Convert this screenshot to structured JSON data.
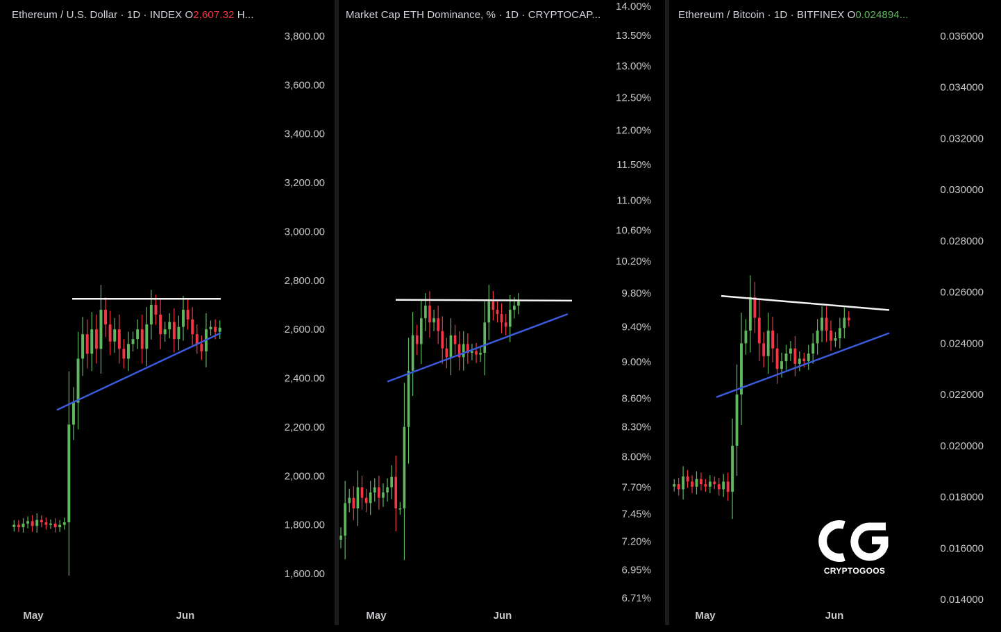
{
  "chart_data": [
    {
      "type": "candlestick",
      "title_prefix": "Ethereum / U.S. Dollar · 1D · INDEX  O",
      "title_value": "2,607.32",
      "title_suffix": "  H...",
      "y_ticks": [
        "3,800.00",
        "3,600.00",
        "3,400.00",
        "3,200.00",
        "3,000.00",
        "2,800.00",
        "2,600.00",
        "2,400.00",
        "2,200.00",
        "2,000.00",
        "1,800.00",
        "1,600.00"
      ],
      "y_tick_values": [
        3800,
        3600,
        3400,
        3200,
        3000,
        2800,
        2600,
        2400,
        2200,
        2000,
        1800,
        1600
      ],
      "ylim": [
        1550,
        3900
      ],
      "x_ticks": [
        "May",
        "Jun"
      ],
      "resistance": [
        2725,
        2725
      ],
      "support": [
        2270,
        2585
      ],
      "closes": [
        1800,
        1790,
        1805,
        1815,
        1795,
        1820,
        1810,
        1800,
        1805,
        1790,
        1800,
        1810,
        2210,
        2300,
        2480,
        2580,
        2500,
        2600,
        2520,
        2680,
        2620,
        2550,
        2600,
        2520,
        2480,
        2540,
        2560,
        2600,
        2520,
        2620,
        2700,
        2660,
        2580,
        2600,
        2630,
        2560,
        2610,
        2680,
        2640,
        2580,
        2540,
        2510,
        2600,
        2610,
        2590,
        2607
      ],
      "colors": {
        "up": "#5fb760",
        "down": "#f23645",
        "resistance": "#f5f5f5",
        "support": "#3b5bdb"
      }
    },
    {
      "type": "candlestick",
      "title_prefix": "Market Cap ETH Dominance, % · 1D · CRYPTOCAP...",
      "y_ticks": [
        "14.00%",
        "13.50%",
        "13.00%",
        "12.50%",
        "12.00%",
        "11.50%",
        "11.00%",
        "10.60%",
        "10.20%",
        "9.80%",
        "9.40%",
        "9.00%",
        "8.60%",
        "8.30%",
        "8.00%",
        "7.70%",
        "7.45%",
        "7.20%",
        "6.95%",
        "6.71%"
      ],
      "y_tick_values": [
        14.0,
        13.5,
        13.0,
        12.5,
        12.0,
        11.5,
        11.0,
        10.6,
        10.2,
        9.8,
        9.4,
        9.0,
        8.6,
        8.3,
        8.0,
        7.7,
        7.45,
        7.2,
        6.95,
        6.71
      ],
      "ylim": [
        6.6,
        14.1
      ],
      "scale": "log",
      "x_ticks": [
        "May",
        "Jun"
      ],
      "resistance": [
        9.72,
        9.71
      ],
      "support": [
        8.78,
        9.55
      ],
      "closes": [
        7.25,
        7.55,
        7.6,
        7.5,
        7.7,
        7.6,
        7.55,
        7.65,
        7.7,
        7.6,
        7.65,
        7.7,
        7.8,
        7.5,
        7.5,
        8.3,
        8.9,
        9.3,
        9.2,
        9.5,
        9.65,
        9.45,
        9.5,
        9.35,
        9.15,
        9.05,
        9.3,
        9.2,
        9.05,
        9.2,
        9.1,
        9.12,
        9.08,
        9.1,
        9.45,
        9.7,
        9.6,
        9.55,
        9.45,
        9.4,
        9.6,
        9.65,
        9.7
      ],
      "colors": {
        "up": "#5fb760",
        "down": "#f23645",
        "resistance": "#f5f5f5",
        "support": "#3b5bdb"
      }
    },
    {
      "type": "candlestick",
      "title_prefix": "Ethereum / Bitcoin · 1D · BITFINEX  O",
      "title_value": "0.024894...",
      "y_ticks": [
        "0.036000",
        "0.034000",
        "0.032000",
        "0.030000",
        "0.028000",
        "0.026000",
        "0.024000",
        "0.022000",
        "0.020000",
        "0.018000",
        "0.016000",
        "0.014000"
      ],
      "y_tick_values": [
        0.036,
        0.034,
        0.032,
        0.03,
        0.028,
        0.026,
        0.024,
        0.022,
        0.02,
        0.018,
        0.016,
        0.014
      ],
      "ylim": [
        0.0138,
        0.0368
      ],
      "x_ticks": [
        "May",
        "Jun"
      ],
      "resistance": [
        0.02585,
        0.0253
      ],
      "support": [
        0.0219,
        0.0244
      ],
      "closes": [
        0.0185,
        0.0183,
        0.0188,
        0.0186,
        0.0184,
        0.0187,
        0.0185,
        0.0184,
        0.0186,
        0.0185,
        0.0183,
        0.0186,
        0.0182,
        0.02,
        0.022,
        0.024,
        0.0245,
        0.0258,
        0.025,
        0.024,
        0.0235,
        0.0245,
        0.0238,
        0.023,
        0.0233,
        0.0236,
        0.0238,
        0.0232,
        0.0234,
        0.0233,
        0.0236,
        0.024,
        0.0245,
        0.025,
        0.0245,
        0.0241,
        0.0242,
        0.0246,
        0.025,
        0.0249
      ],
      "colors": {
        "up": "#5fb760",
        "down": "#f23645",
        "resistance": "#f5f5f5",
        "support": "#3b5bdb"
      }
    }
  ],
  "watermark": {
    "logo_text": "CRYPTOGOOS"
  }
}
